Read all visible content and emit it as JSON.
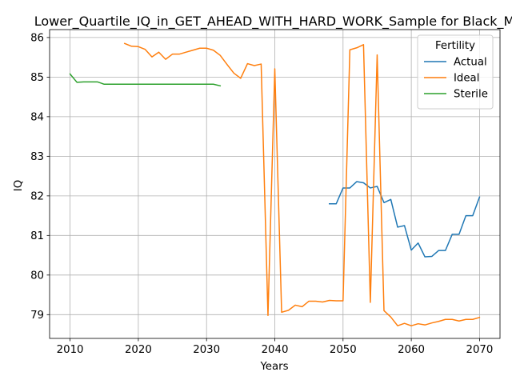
{
  "chart_data": {
    "type": "line",
    "title": "Lower_Quartile_IQ_in_GET_AHEAD_WITH_HARD_WORK_Sample for Black_M",
    "xlabel": "Years",
    "ylabel": "IQ",
    "xlim": [
      2007,
      2073
    ],
    "ylim": [
      78.4,
      86.2
    ],
    "xticks": [
      2010,
      2020,
      2030,
      2040,
      2050,
      2060,
      2070
    ],
    "yticks": [
      79,
      80,
      81,
      82,
      83,
      84,
      85,
      86
    ],
    "grid": true,
    "legend": {
      "title": "Fertility",
      "placement": "top-right"
    },
    "series": [
      {
        "name": "Actual",
        "color": "#1f77b4",
        "x": [
          2048,
          2049,
          2050,
          2051,
          2052,
          2053,
          2054,
          2055,
          2056,
          2057,
          2058,
          2059,
          2060,
          2061,
          2062,
          2063,
          2064,
          2065,
          2066,
          2067,
          2068,
          2069,
          2070
        ],
        "y": [
          81.8,
          81.8,
          82.2,
          82.2,
          82.36,
          82.33,
          82.2,
          82.24,
          81.83,
          81.91,
          81.21,
          81.25,
          80.63,
          80.81,
          80.46,
          80.47,
          80.62,
          80.62,
          81.03,
          81.03,
          81.5,
          81.5,
          81.97
        ]
      },
      {
        "name": "Ideal",
        "color": "#ff7f0e",
        "x": [
          2018,
          2019,
          2020,
          2021,
          2022,
          2023,
          2024,
          2025,
          2026,
          2027,
          2028,
          2029,
          2030,
          2031,
          2032,
          2033,
          2034,
          2035,
          2036,
          2037,
          2038,
          2039,
          2040,
          2041,
          2042,
          2043,
          2044,
          2045,
          2046,
          2047,
          2048,
          2049,
          2050,
          2051,
          2052,
          2053,
          2054,
          2055,
          2056,
          2057,
          2058,
          2059,
          2060,
          2061,
          2062,
          2063,
          2064,
          2065,
          2066,
          2067,
          2068,
          2069,
          2070
        ],
        "y": [
          85.85,
          85.78,
          85.77,
          85.7,
          85.51,
          85.63,
          85.45,
          85.58,
          85.58,
          85.63,
          85.68,
          85.73,
          85.73,
          85.68,
          85.55,
          85.32,
          85.1,
          84.97,
          85.34,
          85.29,
          85.33,
          78.98,
          85.21,
          79.06,
          79.11,
          79.24,
          79.2,
          79.34,
          79.34,
          79.32,
          79.36,
          79.35,
          79.35,
          85.69,
          85.74,
          85.82,
          79.31,
          85.56,
          79.1,
          78.94,
          78.72,
          78.78,
          78.72,
          78.77,
          78.74,
          78.79,
          78.83,
          78.88,
          78.88,
          78.84,
          78.88,
          78.88,
          78.93
        ]
      },
      {
        "name": "Sterile",
        "color": "#2ca02c",
        "x": [
          2010,
          2011,
          2012,
          2013,
          2014,
          2015,
          2016,
          2017,
          2018,
          2019,
          2020,
          2021,
          2022,
          2023,
          2024,
          2025,
          2026,
          2027,
          2028,
          2029,
          2030,
          2031,
          2032
        ],
        "y": [
          85.08,
          84.87,
          84.88,
          84.88,
          84.88,
          84.82,
          84.82,
          84.82,
          84.82,
          84.82,
          84.82,
          84.82,
          84.82,
          84.82,
          84.82,
          84.82,
          84.82,
          84.82,
          84.82,
          84.82,
          84.82,
          84.82,
          84.78
        ]
      }
    ]
  }
}
